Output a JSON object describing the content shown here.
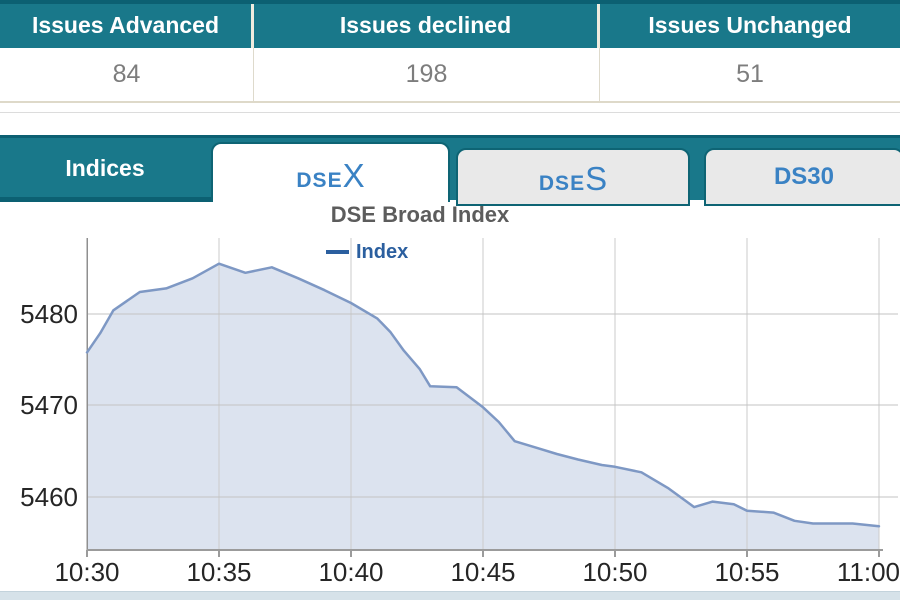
{
  "table": {
    "headers": [
      "Issues Advanced",
      "Issues declined",
      "Issues Unchanged"
    ],
    "values": [
      "84",
      "198",
      "51"
    ]
  },
  "tabs": {
    "section_label": "Indices",
    "items": [
      {
        "label_prefix": "DSE",
        "label_suffix": "X",
        "active": true
      },
      {
        "label_prefix": "DSE",
        "label_suffix": "S",
        "active": false
      },
      {
        "label_prefix": "DS30",
        "label_suffix": "",
        "active": false
      }
    ]
  },
  "colors": {
    "teal": "#19788a",
    "teal_dark": "#0c6072",
    "tab_text": "#3a82c4",
    "line": "#7e98c4",
    "area_fill": "#dce3ef",
    "legend_blue": "#2b5f9f"
  },
  "chart_data": {
    "type": "area",
    "title": "DSE Broad Index",
    "legend_entries": [
      "Index"
    ],
    "legend_position": "top",
    "grid": true,
    "xlabel": "",
    "ylabel": "",
    "x_ticks": [
      "10:30",
      "10:35",
      "10:40",
      "10:45",
      "10:50",
      "10:55",
      "11:00"
    ],
    "y_ticks": [
      5480,
      5470,
      5460
    ],
    "ylim": [
      5454,
      5488
    ],
    "x_axis_note": "minutes after 10:30, one tick per 5 minutes",
    "series": [
      {
        "name": "Index",
        "x": [
          0,
          0.5,
          1.0,
          2.0,
          3.0,
          4.0,
          5.0,
          6.0,
          7.0,
          8.0,
          9.0,
          10.0,
          11.0,
          11.5,
          12.0,
          12.6,
          13.0,
          14.0,
          15.0,
          15.6,
          16.2,
          17.0,
          17.8,
          18.6,
          19.5,
          20.0,
          21.0,
          22.0,
          23.0,
          23.7,
          24.5,
          25.0,
          26.0,
          26.8,
          27.5,
          29.0,
          30.0
        ],
        "values": [
          5475.8,
          5477.9,
          5480.4,
          5482.4,
          5482.8,
          5483.9,
          5485.5,
          5484.5,
          5485.1,
          5483.9,
          5482.6,
          5481.2,
          5479.5,
          5478.0,
          5476.0,
          5474.0,
          5472.1,
          5472.0,
          5469.8,
          5468.2,
          5466.1,
          5465.4,
          5464.7,
          5464.1,
          5463.5,
          5463.3,
          5462.7,
          5461.0,
          5458.9,
          5459.5,
          5459.2,
          5458.5,
          5458.3,
          5457.4,
          5457.1,
          5457.1,
          5456.8
        ]
      }
    ]
  }
}
